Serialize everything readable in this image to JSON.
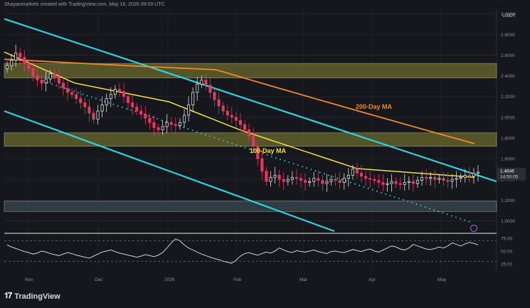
{
  "header": {
    "text": "Shayanmarkets created with TradingView.com, May 16, 2026 09:09 UTC"
  },
  "currency": "USDT",
  "logo": {
    "text": "TradingView"
  },
  "chart_data": {
    "type": "candlestick",
    "x_ticks": [
      "Nov",
      "Dec",
      "2026",
      "Feb",
      "Mar",
      "Apr",
      "May"
    ],
    "y_ticks": [
      "3.0000",
      "2.8000",
      "2.6000",
      "2.4000",
      "2.2000",
      "2.0000",
      "1.8000",
      "1.6000",
      "1.4000",
      "1.2000",
      "1.0000"
    ],
    "ylim": [
      0.9,
      3.05
    ],
    "last_price": "1.4646",
    "countdown": "14:50:05",
    "annotations": [
      "200-Day MA",
      "100-Day MA"
    ],
    "zones": [
      {
        "y_low": 2.38,
        "y_high": 2.52,
        "color": "#6b6a2e"
      },
      {
        "y_low": 1.72,
        "y_high": 1.85,
        "color": "#6b6a2e"
      },
      {
        "y_low": 1.09,
        "y_high": 1.19,
        "color": "#3a4a52"
      }
    ],
    "close_series": [
      2.5,
      2.55,
      2.62,
      2.58,
      2.52,
      2.47,
      2.4,
      2.36,
      2.33,
      2.37,
      2.42,
      2.39,
      2.33,
      2.28,
      2.24,
      2.22,
      2.18,
      2.14,
      2.1,
      2.04,
      1.98,
      2.06,
      2.12,
      2.18,
      2.22,
      2.27,
      2.25,
      2.2,
      2.14,
      2.1,
      2.06,
      2.03,
      1.99,
      1.95,
      1.9,
      1.88,
      1.91,
      1.95,
      1.93,
      1.92,
      1.95,
      2.02,
      2.12,
      2.24,
      2.32,
      2.36,
      2.31,
      2.24,
      2.17,
      2.11,
      2.06,
      2.02,
      2.0,
      1.97,
      1.93,
      1.88,
      1.82,
      1.72,
      1.6,
      1.48,
      1.38,
      1.42,
      1.44,
      1.4,
      1.38,
      1.4,
      1.42,
      1.41,
      1.39,
      1.37,
      1.38,
      1.41,
      1.39,
      1.36,
      1.38,
      1.4,
      1.39,
      1.37,
      1.41,
      1.44,
      1.5,
      1.46,
      1.43,
      1.41,
      1.4,
      1.39,
      1.37,
      1.35,
      1.36,
      1.38,
      1.36,
      1.35,
      1.37,
      1.38,
      1.36,
      1.39,
      1.42,
      1.41,
      1.42,
      1.4,
      1.41,
      1.39,
      1.38,
      1.4,
      1.41,
      1.42,
      1.44,
      1.43,
      1.46,
      1.47
    ],
    "ma_200": {
      "name": "200-Day MA",
      "start": 2.56,
      "end": 1.74
    },
    "ma_100": {
      "name": "100-Day MA",
      "start": 2.63,
      "end": 1.42
    },
    "rsi": {
      "y_ticks": [
        "75.00",
        "50.00",
        "25.00"
      ],
      "ylim": [
        15,
        82
      ],
      "values": [
        62,
        58,
        55,
        52,
        49,
        47,
        44,
        46,
        50,
        48,
        45,
        43,
        41,
        44,
        47,
        45,
        42,
        40,
        38,
        36,
        40,
        44,
        48,
        50,
        52,
        49,
        46,
        44,
        42,
        40,
        38,
        40,
        43,
        41,
        39,
        42,
        47,
        56,
        66,
        74,
        70,
        62,
        56,
        52,
        48,
        44,
        41,
        38,
        35,
        33,
        30,
        28,
        26,
        32,
        40,
        45,
        47,
        44,
        42,
        45,
        48,
        46,
        50,
        56,
        52,
        49,
        47,
        51,
        49,
        48,
        50,
        52,
        49,
        47,
        45,
        49,
        50,
        48,
        47,
        50,
        53,
        51,
        49,
        52,
        54,
        50,
        48,
        52,
        56,
        60,
        58,
        54,
        52,
        56,
        63,
        60,
        57,
        54,
        53,
        55,
        58,
        56,
        60,
        66,
        63,
        60,
        64,
        67,
        65,
        62
      ]
    }
  }
}
